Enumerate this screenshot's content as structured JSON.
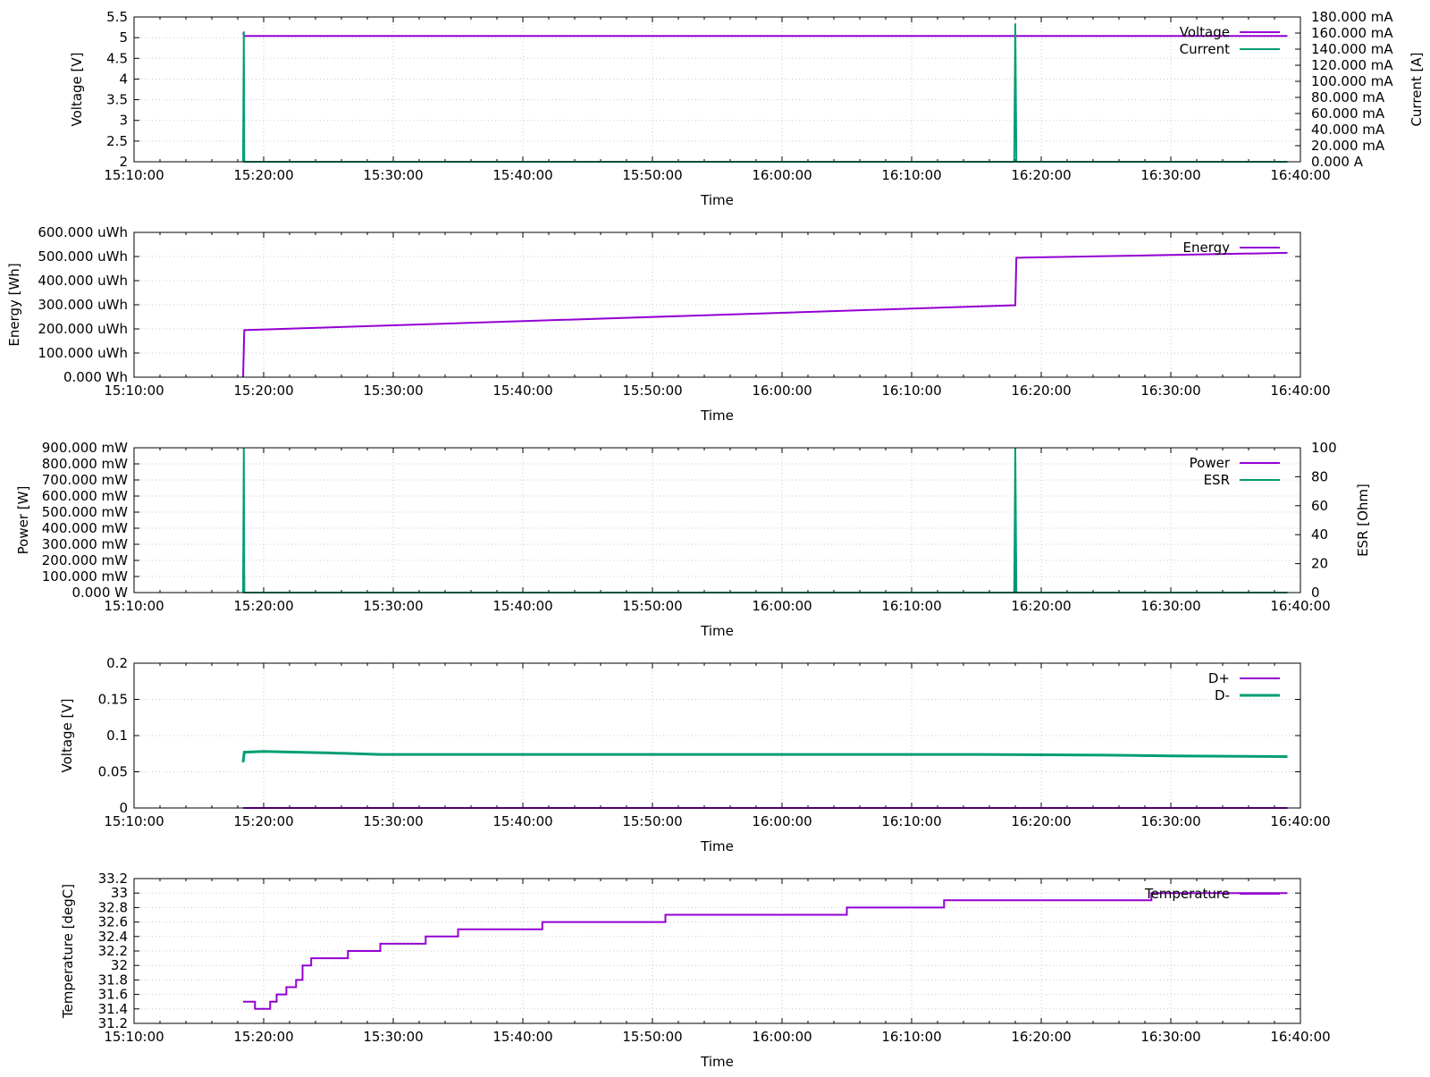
{
  "chart_data": [
    {
      "type": "line",
      "xlabel": "Time",
      "ylabel": "Voltage [V]",
      "y2label": "Current [A]",
      "xlim": [
        "15:10:00",
        "16:40:00"
      ],
      "xticks": [
        "15:10:00",
        "15:20:00",
        "15:30:00",
        "15:40:00",
        "15:50:00",
        "16:00:00",
        "16:10:00",
        "16:20:00",
        "16:30:00",
        "16:40:00"
      ],
      "ylim": [
        2,
        5.5
      ],
      "yticks": [
        "2",
        "2.5",
        "3",
        "3.5",
        "4",
        "4.5",
        "5",
        "5.5"
      ],
      "y2lim": [
        0,
        0.18
      ],
      "y2ticks": [
        "0.000 A",
        "20.000 mA",
        "40.000 mA",
        "60.000 mA",
        "80.000 mA",
        "100.000 mA",
        "120.000 mA",
        "140.000 mA",
        "160.000 mA",
        "180.000 mA"
      ],
      "grid": true,
      "legend_position": "top-right",
      "series": [
        {
          "name": "Voltage",
          "axis": "y",
          "color": "#9400D3",
          "x": [
            "15:18:25",
            "15:18:30",
            "16:39:00"
          ],
          "values": [
            5.12,
            5.04,
            5.04
          ]
        },
        {
          "name": "Current",
          "axis": "y2",
          "color": "#009E73",
          "x": [
            "15:18:25",
            "15:18:28",
            "15:18:30",
            "16:17:55",
            "16:18:00",
            "16:18:05",
            "16:39:00"
          ],
          "values": [
            0.0,
            0.162,
            0.0,
            0.0,
            0.172,
            0.0,
            0.0
          ]
        }
      ]
    },
    {
      "type": "line",
      "xlabel": "Time",
      "ylabel": "Energy [Wh]",
      "xlim": [
        "15:10:00",
        "16:40:00"
      ],
      "xticks": [
        "15:10:00",
        "15:20:00",
        "15:30:00",
        "15:40:00",
        "15:50:00",
        "16:00:00",
        "16:10:00",
        "16:20:00",
        "16:30:00",
        "16:40:00"
      ],
      "ylim": [
        0,
        0.0006
      ],
      "yticks": [
        "0.000 Wh",
        "100.000 uWh",
        "200.000 uWh",
        "300.000 uWh",
        "400.000 uWh",
        "500.000 uWh",
        "600.000 uWh"
      ],
      "grid": true,
      "legend_position": "top-right",
      "series": [
        {
          "name": "Energy",
          "axis": "y",
          "color": "#9400D3",
          "x": [
            "15:18:25",
            "15:18:30",
            "16:18:00",
            "16:18:05",
            "16:39:00"
          ],
          "values": [
            0.0,
            0.000195,
            0.000298,
            0.000495,
            0.000515
          ]
        }
      ]
    },
    {
      "type": "line",
      "xlabel": "Time",
      "ylabel": "Power [W]",
      "y2label": "ESR [Ohm]",
      "xlim": [
        "15:10:00",
        "16:40:00"
      ],
      "xticks": [
        "15:10:00",
        "15:20:00",
        "15:30:00",
        "15:40:00",
        "15:50:00",
        "16:00:00",
        "16:10:00",
        "16:20:00",
        "16:30:00",
        "16:40:00"
      ],
      "ylim": [
        0,
        0.9
      ],
      "yticks": [
        "0.000 W",
        "100.000 mW",
        "200.000 mW",
        "300.000 mW",
        "400.000 mW",
        "500.000 mW",
        "600.000 mW",
        "700.000 mW",
        "800.000 mW",
        "900.000 mW"
      ],
      "y2lim": [
        0,
        100
      ],
      "y2ticks": [
        "0",
        "20",
        "40",
        "60",
        "80",
        "100"
      ],
      "grid": true,
      "legend_position": "top-right",
      "series": [
        {
          "name": "Power",
          "axis": "y",
          "color": "#9400D3",
          "x": [
            "15:18:25",
            "15:18:28",
            "15:18:30",
            "16:17:55",
            "16:18:00",
            "16:18:05",
            "16:39:00"
          ],
          "values": [
            0.0,
            0.27,
            0.0,
            0.0,
            0.27,
            0.0,
            0.0
          ]
        },
        {
          "name": "ESR",
          "axis": "y2",
          "color": "#009E73",
          "x": [
            "15:18:25",
            "15:18:28",
            "15:18:30",
            "16:17:55",
            "16:18:00",
            "16:18:05",
            "16:39:00"
          ],
          "values": [
            0,
            100,
            0,
            0,
            100,
            0,
            0
          ]
        }
      ]
    },
    {
      "type": "line",
      "xlabel": "Time",
      "ylabel": "Voltage [V]",
      "xlim": [
        "15:10:00",
        "16:40:00"
      ],
      "xticks": [
        "15:10:00",
        "15:20:00",
        "15:30:00",
        "15:40:00",
        "15:50:00",
        "16:00:00",
        "16:10:00",
        "16:20:00",
        "16:30:00",
        "16:40:00"
      ],
      "ylim": [
        0,
        0.2
      ],
      "yticks": [
        "0",
        "0.05",
        "0.1",
        "0.15",
        "0.2"
      ],
      "grid": true,
      "legend_position": "top-right",
      "series": [
        {
          "name": "D+",
          "axis": "y",
          "color": "#9400D3",
          "x": [
            "15:18:25",
            "16:39:00"
          ],
          "values": [
            0.0,
            0.0
          ]
        },
        {
          "name": "D-",
          "axis": "y",
          "color": "#009E73",
          "x": [
            "15:18:25",
            "15:18:30",
            "15:20:00",
            "15:25:00",
            "15:29:00",
            "16:00:00",
            "16:15:00",
            "16:25:00",
            "16:30:00",
            "16:39:00"
          ],
          "values": [
            0.063,
            0.077,
            0.078,
            0.076,
            0.074,
            0.074,
            0.074,
            0.073,
            0.072,
            0.071
          ]
        }
      ]
    },
    {
      "type": "line",
      "xlabel": "Time",
      "ylabel": "Temperature [degC]",
      "xlim": [
        "15:10:00",
        "16:40:00"
      ],
      "xticks": [
        "15:10:00",
        "15:20:00",
        "15:30:00",
        "15:40:00",
        "15:50:00",
        "16:00:00",
        "16:10:00",
        "16:20:00",
        "16:30:00",
        "16:40:00"
      ],
      "ylim": [
        31.2,
        33.2
      ],
      "yticks": [
        "31.2",
        "31.4",
        "31.6",
        "31.8",
        "32",
        "32.2",
        "32.4",
        "32.6",
        "32.8",
        "33",
        "33.2"
      ],
      "grid": true,
      "legend_position": "top-right",
      "series": [
        {
          "name": "Temperature",
          "axis": "y",
          "color": "#9400D3",
          "x": [
            "15:18:25",
            "15:19:20",
            "15:19:20",
            "15:20:30",
            "15:20:30",
            "15:21:00",
            "15:21:00",
            "15:21:45",
            "15:21:45",
            "15:22:30",
            "15:22:30",
            "15:23:00",
            "15:23:00",
            "15:23:40",
            "15:23:40",
            "15:26:30",
            "15:26:30",
            "15:29:00",
            "15:29:00",
            "15:32:30",
            "15:32:30",
            "15:35:00",
            "15:35:00",
            "15:41:30",
            "15:41:30",
            "15:51:00",
            "15:51:00",
            "16:05:00",
            "16:05:00",
            "16:12:30",
            "16:12:30",
            "16:28:30",
            "16:28:30",
            "16:39:00"
          ],
          "values": [
            31.5,
            31.5,
            31.4,
            31.4,
            31.5,
            31.5,
            31.6,
            31.6,
            31.7,
            31.7,
            31.8,
            31.8,
            32.0,
            32.0,
            32.1,
            32.1,
            32.2,
            32.2,
            32.3,
            32.3,
            32.4,
            32.4,
            32.5,
            32.5,
            32.6,
            32.6,
            32.7,
            32.7,
            32.8,
            32.8,
            32.9,
            32.9,
            33.0,
            33.0
          ]
        }
      ]
    }
  ]
}
